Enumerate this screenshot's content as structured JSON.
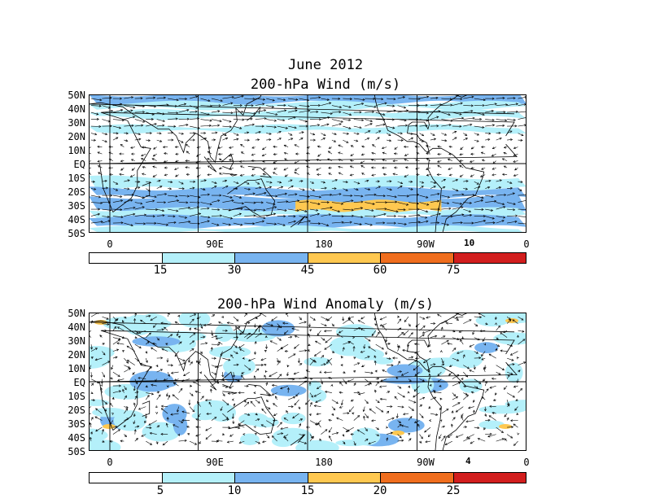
{
  "title": {
    "date": "June 2012",
    "panel1": "200-hPa Wind (m/s)",
    "panel2": "200-hPa Wind Anomaly (m/s)"
  },
  "axes": {
    "lat_labels": [
      "50N",
      "40N",
      "30N",
      "20N",
      "10N",
      "EQ",
      "10S",
      "20S",
      "30S",
      "40S",
      "50S"
    ],
    "lon_labels": [
      "0",
      "90E",
      "180",
      "90W",
      "0"
    ]
  },
  "colorbar1": {
    "ticks": [
      "15",
      "30",
      "45",
      "60",
      "75"
    ],
    "colors": [
      "#ffffff",
      "#b4f0fa",
      "#78b4f0",
      "#ffc850",
      "#f06e1e",
      "#d21e1e"
    ]
  },
  "colorbar2": {
    "ticks": [
      "5",
      "10",
      "15",
      "20",
      "25"
    ],
    "colors": [
      "#ffffff",
      "#b4f0fa",
      "#78b4f0",
      "#ffc850",
      "#f06e1e",
      "#d21e1e"
    ]
  },
  "reference_vector": {
    "panel1": "10",
    "panel2": "4"
  },
  "chart_data": [
    {
      "type": "heatmap",
      "title": "200-hPa Wind (m/s)",
      "x_range": [
        0,
        360
      ],
      "y_range": [
        -50,
        50
      ],
      "levels": [
        15,
        30,
        45,
        60,
        75
      ],
      "bands": [
        {
          "lat": 45,
          "speed": 20
        },
        {
          "lat": 35,
          "speed": 25
        },
        {
          "lat": 25,
          "speed": 15
        },
        {
          "lat": 5,
          "speed": 10
        },
        {
          "lat": -15,
          "speed": 15
        },
        {
          "lat": -25,
          "speed": 35
        },
        {
          "lat": -30,
          "speed": 50
        },
        {
          "lat": -40,
          "speed": 35
        },
        {
          "lat": -45,
          "speed": 30
        }
      ]
    },
    {
      "type": "heatmap",
      "title": "200-hPa Wind Anomaly (m/s)",
      "x_range": [
        0,
        360
      ],
      "y_range": [
        -50,
        50
      ],
      "levels": [
        5,
        10,
        15,
        20,
        25
      ]
    }
  ]
}
